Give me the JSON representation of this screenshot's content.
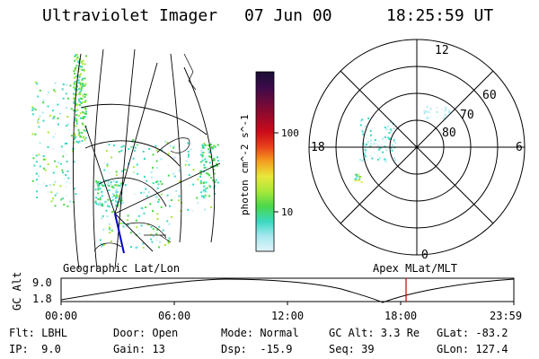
{
  "header": {
    "instrument": "Ultraviolet Imager",
    "date": "07 Jun 00",
    "time": "18:25:59 UT"
  },
  "colorbar": {
    "unit_label": "photon cm^-2 s^-1",
    "ticks": [
      "100",
      "10"
    ],
    "colors": [
      "#1a0f33",
      "#3a0a4a",
      "#6a0a3a",
      "#9a0a2a",
      "#cc0a1a",
      "#e8401a",
      "#f4a020",
      "#e8e83a",
      "#a8e83a",
      "#4ad84a",
      "#3ad8c0",
      "#a8e8f0",
      "#e0f4f8"
    ]
  },
  "geographic_map": {
    "label": "Geographic Lat/Lon"
  },
  "polar_plot": {
    "label": "Apex MLat/MLT",
    "mlt_labels": {
      "top": "12",
      "left": "18",
      "right": "6",
      "bottom": "0"
    },
    "lat_labels": [
      "60",
      "70",
      "80"
    ]
  },
  "altitude_plot": {
    "ylabel": "GC Alt",
    "yticks": [
      "9.0",
      "1.8"
    ],
    "xticks": [
      "00:00",
      "06:00",
      "12:00",
      "18:00",
      "23:59"
    ],
    "marker_color": "#cc0000"
  },
  "footer": {
    "col1": [
      "Flt: LBHL",
      "IP:  9.0"
    ],
    "col2": [
      "Door: Open",
      "Gain: 13"
    ],
    "col3": [
      "Mode: Normal",
      "Dsp:  -15.9"
    ],
    "col4": [
      "GC Alt: 3.3 Re",
      "Seq: 39"
    ],
    "col5": [
      "GLat: -83.2",
      "GLon: 127.4"
    ]
  }
}
